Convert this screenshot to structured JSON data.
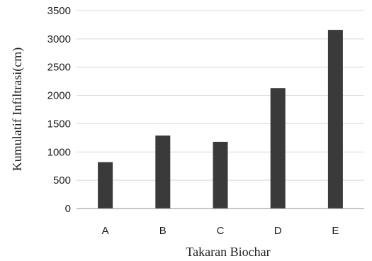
{
  "colors": {
    "bar": "#3a3a3a",
    "grid": "#d9d9d9",
    "axis": "#8c8c8c",
    "text": "#1f1f1f",
    "background": "#ffffff"
  },
  "chart_data": {
    "type": "bar",
    "categories": [
      "A",
      "B",
      "C",
      "D",
      "E"
    ],
    "values": [
      820,
      1290,
      1180,
      2130,
      3160
    ],
    "title": "",
    "xlabel": "Takaran Biochar",
    "ylabel": "Kumulatif Infiltrasi(cm)",
    "ylim": [
      0,
      3500
    ],
    "yticks": [
      0,
      500,
      1000,
      1500,
      2000,
      2500,
      3000,
      3500
    ],
    "grid": true,
    "legend": "none"
  }
}
